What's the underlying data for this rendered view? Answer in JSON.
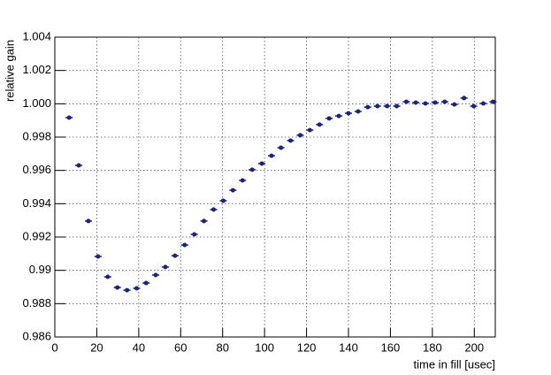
{
  "chart_data": {
    "type": "scatter",
    "x_label": "time in fill [usec]",
    "y_label": "relative gain",
    "color": "#1a237e",
    "grid": true,
    "xerr": 1.7,
    "x": [
      6.8,
      11.4,
      16.0,
      20.6,
      25.2,
      29.8,
      34.4,
      39.0,
      43.5,
      48.1,
      52.7,
      57.3,
      61.9,
      66.5,
      71.1,
      75.7,
      80.3,
      84.9,
      89.5,
      94.1,
      98.7,
      103.3,
      107.8,
      112.4,
      117.0,
      121.6,
      126.2,
      130.8,
      135.4,
      140.0,
      144.6,
      149.2,
      153.8,
      158.4,
      163.0,
      167.6,
      172.1,
      176.7,
      181.3,
      185.9,
      190.5,
      195.1,
      199.7,
      204.3,
      208.9
    ],
    "values": [
      0.99917,
      0.9963,
      0.99296,
      0.99083,
      0.98961,
      0.98897,
      0.98881,
      0.98892,
      0.98924,
      0.98972,
      0.9902,
      0.99088,
      0.99152,
      0.99216,
      0.99296,
      0.99365,
      0.99418,
      0.99481,
      0.9954,
      0.99604,
      0.99641,
      0.99688,
      0.99736,
      0.99779,
      0.99811,
      0.99842,
      0.99875,
      0.99912,
      0.99927,
      0.99943,
      0.99954,
      0.9998,
      0.99986,
      0.99986,
      0.99986,
      1.00012,
      1.00007,
      1.00002,
      1.00007,
      1.00012,
      0.99996,
      1.00034,
      0.99986,
      1.00002,
      1.00012
    ],
    "xlim": [
      0,
      210
    ],
    "ylim": [
      0.986,
      1.004
    ],
    "xticks": [
      0,
      20,
      40,
      60,
      80,
      100,
      120,
      140,
      160,
      180,
      200
    ],
    "yticks": [
      0.986,
      0.988,
      0.99,
      0.992,
      0.994,
      0.996,
      0.998,
      {
        "value": 1.0,
        "label": "1.000"
      },
      1.002,
      1.004
    ]
  }
}
